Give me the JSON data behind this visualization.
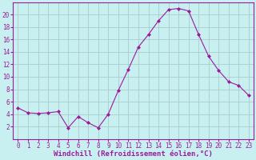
{
  "x": [
    0,
    1,
    2,
    3,
    4,
    5,
    6,
    7,
    8,
    9,
    10,
    11,
    12,
    13,
    14,
    15,
    16,
    17,
    18,
    19,
    20,
    21,
    22,
    23
  ],
  "y": [
    5.0,
    4.2,
    4.1,
    4.2,
    4.4,
    1.8,
    3.6,
    2.6,
    1.8,
    4.0,
    7.8,
    11.2,
    14.8,
    16.8,
    19.0,
    20.8,
    21.0,
    20.6,
    16.8,
    13.3,
    11.0,
    9.2,
    8.6,
    7.0
  ],
  "line_color": "#9c1a9c",
  "marker": "D",
  "marker_size": 2.0,
  "bg_color": "#c8f0f0",
  "grid_color": "#aacccc",
  "xlabel": "Windchill (Refroidissement éolien,°C)",
  "xlabel_fontsize": 6.5,
  "tick_fontsize": 5.5,
  "ylim": [
    0,
    22
  ],
  "yticks": [
    2,
    4,
    6,
    8,
    10,
    12,
    14,
    16,
    18,
    20
  ],
  "xticks": [
    0,
    1,
    2,
    3,
    4,
    5,
    6,
    7,
    8,
    9,
    10,
    11,
    12,
    13,
    14,
    15,
    16,
    17,
    18,
    19,
    20,
    21,
    22,
    23
  ]
}
